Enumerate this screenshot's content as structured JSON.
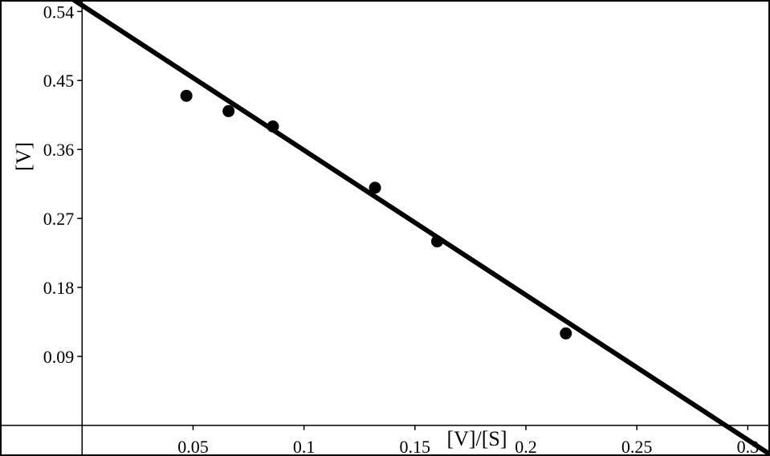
{
  "chart_data": {
    "type": "scatter",
    "title": "",
    "xlabel": "[V]/[S]",
    "ylabel": "[V]",
    "xlim": [
      -0.037,
      0.31
    ],
    "ylim": [
      -0.04,
      0.555
    ],
    "x_ticks": [
      0.05,
      0.1,
      0.15,
      0.2,
      0.25,
      0.3
    ],
    "x_tick_labels": [
      "0.05",
      "0.1",
      "0.15",
      "0.2",
      "0.25",
      "0.3"
    ],
    "y_ticks": [
      0.09,
      0.18,
      0.27,
      0.36,
      0.45,
      0.54
    ],
    "y_tick_labels": [
      "0.09",
      "0.18",
      "0.27",
      "0.36",
      "0.45",
      "0.54"
    ],
    "grid": false,
    "series": [
      {
        "kind": "points",
        "x": [
          0.047,
          0.066,
          0.086,
          0.132,
          0.16,
          0.218
        ],
        "y": [
          0.43,
          0.41,
          0.39,
          0.31,
          0.24,
          0.12
        ]
      }
    ],
    "fit_line": {
      "slope": -1.89,
      "intercept": 0.548
    }
  }
}
